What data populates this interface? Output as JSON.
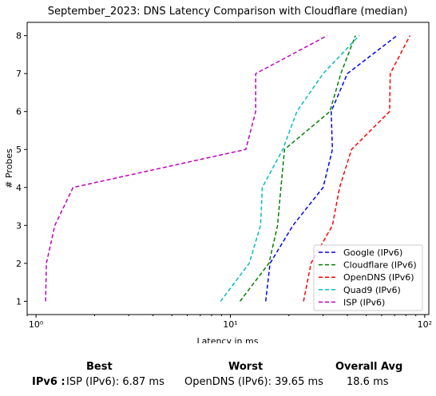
{
  "chart_data": {
    "type": "line",
    "title": "September_2023: DNS Latency Comparison with Cloudflare (median)",
    "xlabel": "Latency in ms",
    "ylabel": "# Probes",
    "xscale": "log",
    "xlim": [
      0.9,
      105
    ],
    "ylim": [
      0.65,
      8.35
    ],
    "xticks": [
      1,
      10,
      100
    ],
    "xtick_labels": [
      "10⁰",
      "10¹",
      "10²"
    ],
    "yticks": [
      1,
      2,
      3,
      4,
      5,
      6,
      7,
      8
    ],
    "grid": false,
    "legend_position": "lower-right",
    "series": [
      {
        "name": "Google (IPv6)",
        "color": "#0000ff",
        "y": [
          1,
          2,
          3,
          4,
          5,
          6,
          7,
          8
        ],
        "x": [
          15.2,
          16.0,
          21.0,
          30.0,
          33.5,
          33.0,
          40.0,
          72.0
        ]
      },
      {
        "name": "Cloudflare (IPv6)",
        "color": "#008000",
        "y": [
          1,
          2,
          3,
          4,
          5,
          6,
          7,
          8
        ],
        "x": [
          11.2,
          15.8,
          17.5,
          18.2,
          19.0,
          32.5,
          37.0,
          44.0
        ]
      },
      {
        "name": "OpenDNS (IPv6)",
        "color": "#ff0000",
        "y": [
          1,
          2,
          3,
          4,
          5,
          6,
          7,
          8
        ],
        "x": [
          23.8,
          26.0,
          33.5,
          36.5,
          42.0,
          66.0,
          66.5,
          84.0
        ]
      },
      {
        "name": "Quad9 (IPv6)",
        "color": "#00bfbf",
        "y": [
          1,
          2,
          3,
          4,
          5,
          6,
          7,
          8
        ],
        "x": [
          8.9,
          12.5,
          14.3,
          14.6,
          18.6,
          22.0,
          30.0,
          46.0
        ]
      },
      {
        "name": "ISP (IPv6)",
        "color": "#bf00bf",
        "y": [
          1,
          2,
          3,
          4,
          5,
          6,
          7,
          8
        ],
        "x": [
          1.12,
          1.13,
          1.25,
          1.55,
          12.0,
          13.5,
          13.5,
          31.5
        ]
      }
    ]
  },
  "summary": {
    "best_header": "Best",
    "worst_header": "Worst",
    "avg_header": "Overall Avg",
    "row_label": "IPv6 :",
    "best_value": "ISP (IPv6): 6.87 ms",
    "worst_value": "OpenDNS (IPv6): 39.65 ms",
    "avg_value": "18.6 ms"
  }
}
